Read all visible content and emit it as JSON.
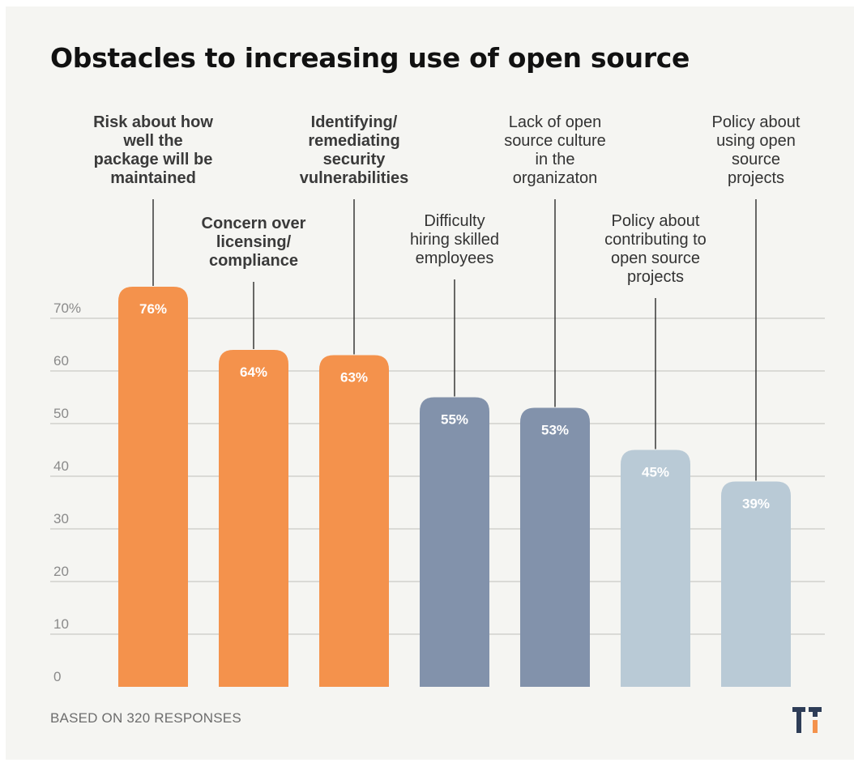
{
  "header": {
    "title": "Obstacles to increasing use of open source"
  },
  "footer": {
    "note": "BASED ON 320 RESPONSES"
  },
  "colors": {
    "orange": "#f4924c",
    "slate": "#8292ab",
    "light": "#b9cad6"
  },
  "chart_data": {
    "type": "bar",
    "title": "Obstacles to increasing use of open source",
    "ylim": [
      0,
      80
    ],
    "y_ticks": [
      "0",
      "10",
      "20",
      "30",
      "40",
      "50",
      "60",
      "70%"
    ],
    "y_tick_values": [
      0,
      10,
      20,
      30,
      40,
      50,
      60,
      70
    ],
    "grid": true,
    "categories": [
      "Risk about how well the package will be maintained",
      "Concern over licensing/ compliance",
      "Identifying/ remediating security vulnerabilities",
      "Difficulty hiring skilled employees",
      "Lack of open source culture in the organizaton",
      "Policy about contributing to open source projects",
      "Policy about using open source projects"
    ],
    "category_label_lines": [
      [
        "Risk about how",
        "well the",
        "package will be",
        "maintained"
      ],
      [
        "Concern over",
        "licensing/",
        "compliance"
      ],
      [
        "Identifying/",
        "remediating",
        "security",
        "vulnerabilities"
      ],
      [
        "Difficulty",
        "hiring skilled",
        "employees"
      ],
      [
        "Lack of open",
        "source culture",
        "in the",
        "organizaton"
      ],
      [
        "Policy about",
        "contributing to",
        "open source",
        "projects"
      ],
      [
        "Policy about",
        "using open",
        "source",
        "projects"
      ]
    ],
    "values": [
      76,
      64,
      63,
      55,
      53,
      45,
      39
    ],
    "value_labels": [
      "76%",
      "64%",
      "63%",
      "55%",
      "53%",
      "45%",
      "39%"
    ],
    "bar_colors": [
      "orange",
      "orange",
      "orange",
      "slate",
      "slate",
      "light",
      "light"
    ],
    "bold_labels": [
      true,
      true,
      true,
      false,
      false,
      false,
      false
    ]
  }
}
